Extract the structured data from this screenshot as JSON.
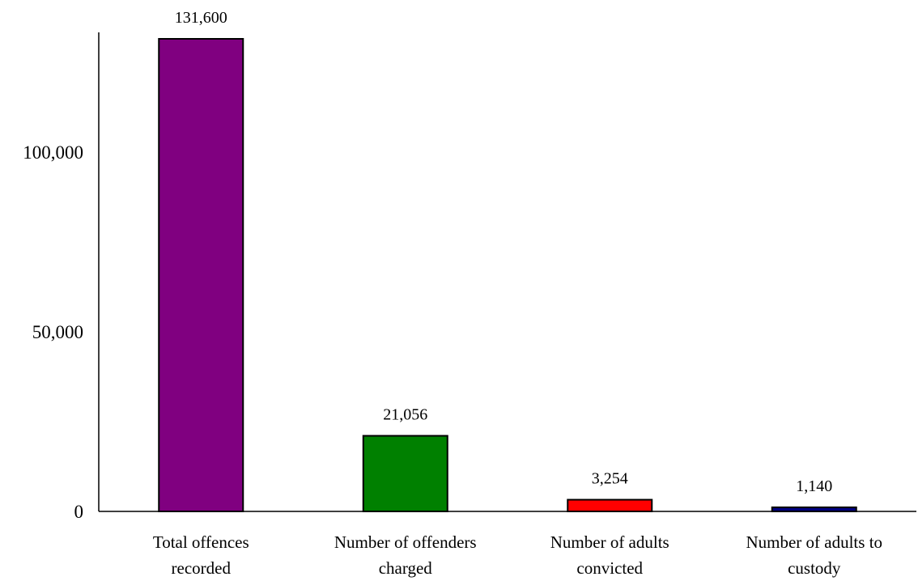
{
  "chart_data": {
    "type": "bar",
    "categories": [
      [
        "Total offences",
        "recorded"
      ],
      [
        "Number of offenders",
        "charged"
      ],
      [
        "Number of adults",
        "convicted"
      ],
      [
        "Number of adults to",
        "custody"
      ]
    ],
    "values": [
      131600,
      21056,
      3254,
      1140
    ],
    "data_labels": [
      "131,600",
      "21,056",
      "3,254",
      "1,140"
    ],
    "colors": [
      "#800080",
      "#008000",
      "#ff0000",
      "#000080"
    ],
    "y_ticks": [
      0,
      50000,
      100000
    ],
    "y_tick_labels": [
      "0",
      "50,000",
      "100,000"
    ],
    "ylim": [
      0,
      131600
    ],
    "grid": false,
    "title": "",
    "xlabel": "",
    "ylabel": ""
  }
}
